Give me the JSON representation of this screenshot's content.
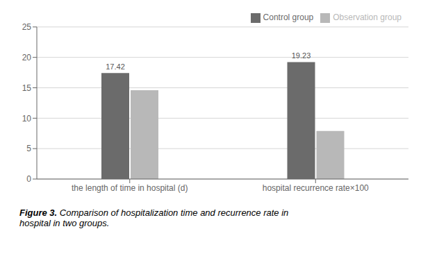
{
  "chart_data": {
    "type": "bar",
    "categories": [
      "the length of time in hospital (d)",
      "hospital recurrence rate×100"
    ],
    "series": [
      {
        "name": "Control group",
        "color": "#6b6b6b",
        "values": [
          17.42,
          19.23
        ],
        "data_labels": true
      },
      {
        "name": "Observation group",
        "color": "#b8b8b8",
        "values": [
          14.6,
          7.9
        ]
      }
    ],
    "ylim": [
      0,
      25
    ],
    "yticks": [
      0,
      5,
      10,
      15,
      20,
      25
    ],
    "grid": true,
    "legend": "upper right",
    "caption": {
      "bold": "Figure 3.",
      "text": "Comparison of hospitalization time and recurrence rate in\nhospital in two groups."
    }
  }
}
